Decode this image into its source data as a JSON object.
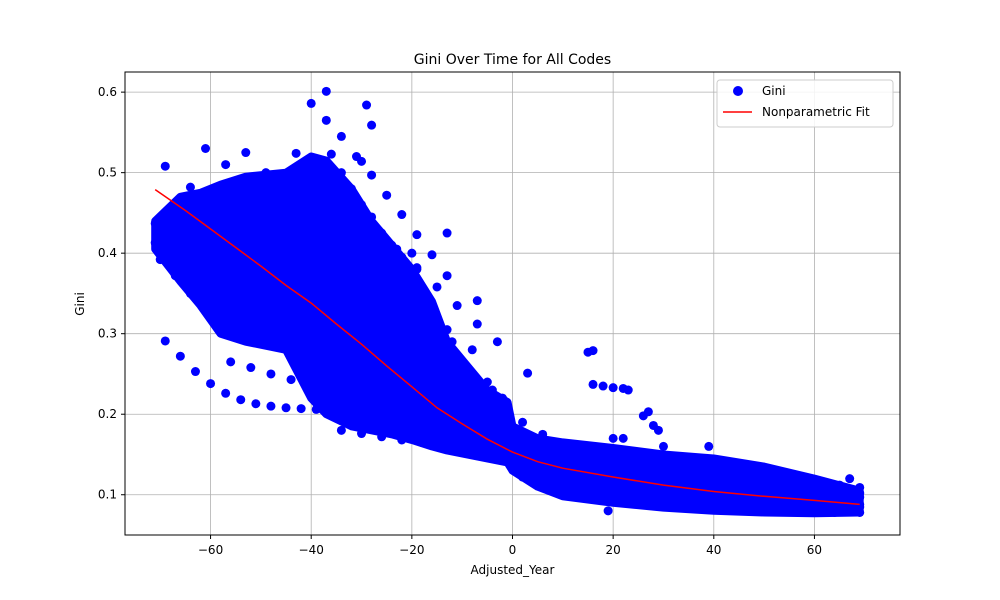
{
  "chart_data": {
    "type": "scatter",
    "title": "Gini Over Time for All Codes",
    "xlabel": "Adjusted_Year",
    "ylabel": "Gini",
    "xlim": [
      -77,
      77
    ],
    "ylim": [
      0.05,
      0.625
    ],
    "xticks": [
      -60,
      -40,
      -20,
      0,
      20,
      40,
      60
    ],
    "yticks": [
      0.1,
      0.2,
      0.3,
      0.4,
      0.5,
      0.6
    ],
    "xtick_labels": [
      "−60",
      "−40",
      "−20",
      "0",
      "20",
      "40",
      "60"
    ],
    "ytick_labels": [
      "0.1",
      "0.2",
      "0.3",
      "0.4",
      "0.5",
      "0.6"
    ],
    "grid": true,
    "legend_position": "top-right",
    "series": [
      {
        "name": "Gini",
        "kind": "scatter",
        "color": "#0000ff",
        "curves": [
          {
            "x": [
              -69,
              -64,
              -60,
              -55,
              -50,
              -45,
              -41
            ],
            "y": [
              0.508,
              0.482,
              0.464,
              0.455,
              0.448,
              0.445,
              0.443
            ]
          },
          {
            "x": [
              -71,
              -66,
              -62,
              -58,
              -54,
              -50,
              -46,
              -42,
              -38,
              -34
            ],
            "y": [
              0.437,
              0.418,
              0.404,
              0.392,
              0.381,
              0.371,
              0.361,
              0.352,
              0.343,
              0.335
            ]
          },
          {
            "x": [
              -71,
              -67,
              -63,
              -59,
              -55,
              -51,
              -47,
              -43,
              -39,
              -35,
              -31,
              -27
            ],
            "y": [
              0.413,
              0.398,
              0.384,
              0.371,
              0.359,
              0.347,
              0.336,
              0.326,
              0.316,
              0.306,
              0.296,
              0.287
            ]
          },
          {
            "x": [
              -70,
              -67,
              -64,
              -61,
              -58,
              -55,
              -52,
              -49,
              -46,
              -43,
              -40
            ],
            "y": [
              0.392,
              0.372,
              0.35,
              0.333,
              0.32,
              0.311,
              0.304,
              0.298,
              0.293,
              0.289,
              0.286
            ]
          },
          {
            "x": [
              -69,
              -66,
              -63,
              -60,
              -57,
              -54,
              -51,
              -48,
              -45,
              -42,
              -39,
              -36,
              -33
            ],
            "y": [
              0.291,
              0.272,
              0.253,
              0.238,
              0.226,
              0.218,
              0.213,
              0.21,
              0.208,
              0.207,
              0.206,
              0.205,
              0.204
            ]
          },
          {
            "x": [
              -61,
              -57,
              -53,
              -49,
              -45,
              -41,
              -37,
              -33,
              -29,
              -25,
              -21
            ],
            "y": [
              0.53,
              0.51,
              0.49,
              0.47,
              0.45,
              0.425,
              0.4,
              0.38,
              0.36,
              0.342,
              0.325
            ]
          },
          {
            "x": [
              -53,
              -49,
              -45,
              -41,
              -37,
              -33,
              -29,
              -25,
              -21,
              -17,
              -13
            ],
            "y": [
              0.525,
              0.5,
              0.475,
              0.452,
              0.428,
              0.405,
              0.383,
              0.362,
              0.342,
              0.323,
              0.305
            ]
          },
          {
            "x": [
              -43,
              -39,
              -35,
              -31,
              -27,
              -23,
              -19,
              -15,
              -11,
              -7,
              -3
            ],
            "y": [
              0.524,
              0.5,
              0.476,
              0.452,
              0.428,
              0.405,
              0.382,
              0.358,
              0.335,
              0.312,
              0.29
            ]
          },
          {
            "x": [
              -40,
              -37,
              -34,
              -31,
              -28,
              -25,
              -22,
              -19,
              -16,
              -13
            ],
            "y": [
              0.586,
              0.565,
              0.545,
              0.52,
              0.497,
              0.472,
              0.448,
              0.423,
              0.398,
              0.372
            ]
          },
          {
            "x": [
              -56,
              -52,
              -48,
              -44,
              -40,
              -36,
              -32,
              -28,
              -24,
              -20,
              -16,
              -12,
              -8,
              -4,
              0
            ],
            "y": [
              0.265,
              0.258,
              0.25,
              0.243,
              0.235,
              0.226,
              0.218,
              0.21,
              0.202,
              0.195,
              0.189,
              0.184,
              0.18,
              0.176,
              0.172
            ]
          },
          {
            "x": [
              -34,
              -30,
              -26,
              -22,
              -18,
              -14,
              -10,
              -6,
              -2,
              2,
              6
            ],
            "y": [
              0.18,
              0.176,
              0.172,
              0.168,
              0.165,
              0.161,
              0.158,
              0.155,
              0.152,
              0.149,
              0.146
            ]
          },
          {
            "x": [
              -15,
              -11,
              -7,
              -3,
              1,
              5,
              9,
              13,
              17,
              21
            ],
            "y": [
              0.18,
              0.172,
              0.165,
              0.158,
              0.15,
              0.142,
              0.134,
              0.126,
              0.119,
              0.112
            ]
          },
          {
            "x": [
              -10,
              -6,
              -2,
              2,
              6,
              10,
              14,
              18,
              22
            ],
            "y": [
              0.228,
              0.216,
              0.204,
              0.19,
              0.175,
              0.16,
              0.145,
              0.13,
              0.116
            ]
          },
          {
            "x": [
              0,
              6,
              12,
              18,
              24,
              30,
              36,
              42,
              48,
              54,
              60,
              66,
              69
            ],
            "y": [
              0.155,
              0.144,
              0.135,
              0.128,
              0.123,
              0.118,
              0.114,
              0.11,
              0.107,
              0.104,
              0.101,
              0.098,
              0.097
            ]
          },
          {
            "x": [
              0,
              6,
              12,
              18,
              24,
              30,
              36,
              42,
              48,
              54,
              60,
              66,
              69
            ],
            "y": [
              0.138,
              0.128,
              0.12,
              0.114,
              0.109,
              0.105,
              0.101,
              0.098,
              0.095,
              0.093,
              0.091,
              0.089,
              0.088
            ]
          },
          {
            "x": [
              2,
              8,
              14,
              20,
              26,
              32,
              38,
              44,
              50,
              56,
              62,
              68
            ],
            "y": [
              0.122,
              0.112,
              0.105,
              0.099,
              0.095,
              0.092,
              0.089,
              0.087,
              0.085,
              0.083,
              0.082,
              0.081
            ]
          },
          {
            "x": [
              5,
              11,
              17,
              23,
              29,
              35,
              41,
              47,
              53,
              59,
              65,
              69
            ],
            "y": [
              0.165,
              0.155,
              0.147,
              0.141,
              0.136,
              0.132,
              0.128,
              0.124,
              0.12,
              0.116,
              0.112,
              0.109
            ]
          },
          {
            "x": [
              10,
              16,
              22,
              28,
              34,
              40,
              46,
              52,
              58,
              64,
              69
            ],
            "y": [
              0.11,
              0.102,
              0.096,
              0.091,
              0.087,
              0.084,
              0.082,
              0.08,
              0.079,
              0.078,
              0.078
            ]
          },
          {
            "x": [
              16,
              18,
              20,
              22,
              23
            ],
            "y": [
              0.237,
              0.235,
              0.233,
              0.232,
              0.23
            ]
          },
          {
            "x": [
              26,
              27,
              28,
              29,
              30
            ],
            "y": [
              0.198,
              0.203,
              0.186,
              0.18,
              0.16
            ]
          },
          {
            "x": [
              -36,
              -34,
              -32,
              -30,
              -28,
              -26,
              -24,
              -22,
              -20
            ],
            "y": [
              0.523,
              0.5,
              0.48,
              0.46,
              0.445,
              0.425,
              0.41,
              0.395,
              0.38
            ]
          }
        ],
        "points": [
          {
            "x": -37,
            "y": 0.601
          },
          {
            "x": -29,
            "y": 0.584
          },
          {
            "x": -28,
            "y": 0.559
          },
          {
            "x": -30,
            "y": 0.514
          },
          {
            "x": -13,
            "y": 0.425
          },
          {
            "x": -7,
            "y": 0.341
          },
          {
            "x": -8,
            "y": 0.28
          },
          {
            "x": 3,
            "y": 0.251
          },
          {
            "x": 15,
            "y": 0.277
          },
          {
            "x": 16,
            "y": 0.279
          },
          {
            "x": 39,
            "y": 0.16
          },
          {
            "x": 67,
            "y": 0.12
          },
          {
            "x": -20,
            "y": 0.4
          },
          {
            "x": -19,
            "y": 0.38
          },
          {
            "x": -18,
            "y": 0.355
          },
          {
            "x": -17,
            "y": 0.347
          },
          {
            "x": -16,
            "y": 0.33
          },
          {
            "x": -15,
            "y": 0.315
          },
          {
            "x": -14,
            "y": 0.3
          },
          {
            "x": -12,
            "y": 0.29
          },
          {
            "x": -11,
            "y": 0.27
          },
          {
            "x": -5,
            "y": 0.24
          },
          {
            "x": -4,
            "y": 0.23
          },
          {
            "x": -2,
            "y": 0.22
          },
          {
            "x": 22,
            "y": 0.17
          },
          {
            "x": 20,
            "y": 0.17
          },
          {
            "x": 63,
            "y": 0.1
          },
          {
            "x": 69,
            "y": 0.102
          },
          {
            "x": 69,
            "y": 0.085
          },
          {
            "x": 19,
            "y": 0.08
          }
        ]
      },
      {
        "name": "Nonparametric Fit",
        "kind": "line",
        "color": "#ff0000",
        "x": [
          -71,
          -65,
          -60,
          -55,
          -50,
          -45,
          -40,
          -35,
          -30,
          -25,
          -20,
          -15,
          -10,
          -5,
          0,
          5,
          10,
          20,
          30,
          40,
          50,
          60,
          69
        ],
        "y": [
          0.479,
          0.453,
          0.43,
          0.407,
          0.384,
          0.36,
          0.338,
          0.312,
          0.287,
          0.26,
          0.234,
          0.208,
          0.188,
          0.169,
          0.153,
          0.141,
          0.133,
          0.122,
          0.112,
          0.104,
          0.098,
          0.093,
          0.088
        ]
      }
    ],
    "fill": {
      "color": "#0000ff",
      "upper": {
        "x": [
          -71,
          -66,
          -62,
          -58,
          -53,
          -45,
          -40,
          -37,
          -32,
          -28,
          -24,
          -20,
          -16,
          -13,
          -9,
          -5,
          -1,
          0,
          5,
          10,
          20,
          30,
          40,
          50,
          60,
          69
        ],
        "y": [
          0.44,
          0.47,
          0.475,
          0.485,
          0.495,
          0.5,
          0.52,
          0.515,
          0.48,
          0.44,
          0.41,
          0.38,
          0.34,
          0.29,
          0.26,
          0.23,
          0.215,
          0.185,
          0.17,
          0.165,
          0.158,
          0.15,
          0.145,
          0.135,
          0.12,
          0.105
        ]
      },
      "lower": {
        "x": [
          -71,
          -66,
          -62,
          -58,
          -53,
          -45,
          -40,
          -37,
          -32,
          -28,
          -24,
          -20,
          -16,
          -13,
          -9,
          -5,
          -1,
          0,
          5,
          10,
          20,
          30,
          40,
          50,
          60,
          69
        ],
        "y": [
          0.405,
          0.365,
          0.335,
          0.3,
          0.29,
          0.28,
          0.22,
          0.2,
          0.185,
          0.18,
          0.175,
          0.168,
          0.16,
          0.155,
          0.15,
          0.145,
          0.14,
          0.13,
          0.11,
          0.098,
          0.09,
          0.084,
          0.08,
          0.078,
          0.077,
          0.078
        ]
      }
    }
  }
}
